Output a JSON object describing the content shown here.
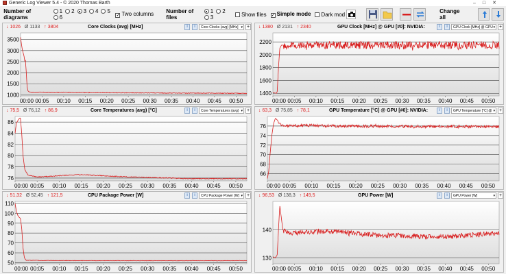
{
  "window": {
    "title": "Generic Log Viewer 5.4 - © 2020 Thomas Barth"
  },
  "toolbar": {
    "diagrams_label": "Number of diagrams",
    "diagram_options": [
      "1",
      "2",
      "3",
      "4",
      "5",
      "6"
    ],
    "diagram_selected": "3",
    "two_columns_label": "Two columns",
    "files_label": "Number of files",
    "file_options": [
      "1",
      "2",
      "3"
    ],
    "file_selected": "1",
    "show_files_label": "Show files",
    "simple_mode_label": "Simple mode",
    "dark_mode_label": "Dark mod",
    "change_all_label": "Change all"
  },
  "colors": {
    "series": "#d81e1e",
    "stats": "#d22222",
    "plot_bg_top": "#ffffff",
    "plot_bg_bottom": "#dcdcdc"
  },
  "panels": [
    {
      "id": "core-clocks",
      "stats": {
        "min": "↓ 1026",
        "avg": "Ø 1133",
        "max": "↑ 3804"
      },
      "title": "Core Clocks (avg) [MHz]",
      "selector": "Core Clocks (avg) [MHz]",
      "chart_data": {
        "type": "line",
        "title": "Core Clocks (avg) [MHz]",
        "x_ticks": [
          "00:00",
          "00:05",
          "00:10",
          "00:15",
          "00:20",
          "00:25",
          "00:30",
          "00:35",
          "00:40",
          "00:45",
          "00:50"
        ],
        "y_ticks": [
          1000,
          1500,
          2000,
          2500,
          3000,
          3500
        ],
        "ylim": [
          950,
          3800
        ],
        "xlim_minutes": [
          0,
          52.5
        ],
        "series": [
          {
            "points": [
              [
                0,
                3600
              ],
              [
                0.2,
                3300
              ],
              [
                0.4,
                3050
              ],
              [
                0.6,
                2900
              ],
              [
                0.8,
                2750
              ],
              [
                1.0,
                2500
              ],
              [
                1.1,
                2600
              ],
              [
                1.3,
                2100
              ],
              [
                1.5,
                1400
              ],
              [
                1.7,
                1180
              ],
              [
                2,
                1130
              ],
              [
                3,
                1110
              ],
              [
                5,
                1115
              ],
              [
                8,
                1105
              ],
              [
                10,
                1110
              ],
              [
                15,
                1100
              ],
              [
                20,
                1095
              ],
              [
                25,
                1090
              ],
              [
                30,
                1085
              ],
              [
                35,
                1080
              ],
              [
                40,
                1075
              ],
              [
                45,
                1075
              ],
              [
                50,
                1070
              ],
              [
                52.5,
                1065
              ]
            ],
            "noise": 15
          }
        ]
      }
    },
    {
      "id": "gpu-clock",
      "stats": {
        "min": "↓ 1380",
        "avg": "Ø 2131",
        "max": "↑ 2340"
      },
      "title": "GPU Clock [MHz] @ GPU [#0]: NVIDIA:",
      "selector": "GPU Clock [MHz] @ GPU",
      "chart_data": {
        "type": "line",
        "title": "GPU Clock [MHz] @ GPU [#0]: NVIDIA:",
        "x_ticks": [
          "00:00",
          "00:05",
          "00:10",
          "00:15",
          "00:20",
          "00:25",
          "00:30",
          "00:35",
          "00:40",
          "00:45",
          "00:50"
        ],
        "y_ticks": [
          1400,
          1600,
          1800,
          2000,
          2200
        ],
        "ylim": [
          1360,
          2340
        ],
        "xlim_minutes": [
          0,
          52.5
        ],
        "series": [
          {
            "points": [
              [
                0,
                1410
              ],
              [
                0.8,
                1400
              ],
              [
                1.0,
                1420
              ],
              [
                1.3,
                1800
              ],
              [
                1.6,
                2100
              ],
              [
                2,
                2150
              ],
              [
                5,
                2150
              ],
              [
                10,
                2150
              ],
              [
                20,
                2150
              ],
              [
                30,
                2150
              ],
              [
                40,
                2150
              ],
              [
                50,
                2150
              ],
              [
                52.5,
                2150
              ]
            ],
            "noise": 60
          }
        ]
      }
    },
    {
      "id": "core-temps",
      "stats": {
        "min": "↓ 75,5",
        "avg": "Ø 76,12",
        "max": "↑ 86,9"
      },
      "title": "Core Temperatures (avg) [°C]",
      "selector": "Core Temperatures (avg)",
      "chart_data": {
        "type": "line",
        "title": "Core Temperatures (avg) [°C]",
        "x_ticks": [
          "00:00",
          "00:05",
          "00:10",
          "00:15",
          "00:20",
          "00:25",
          "00:30",
          "00:35",
          "00:40",
          "00:45",
          "00:50"
        ],
        "y_ticks": [
          76,
          78,
          80,
          82,
          84,
          86
        ],
        "ylim": [
          75.5,
          87
        ],
        "xlim_minutes": [
          0,
          52.5
        ],
        "series": [
          {
            "points": [
              [
                0,
                84
              ],
              [
                0.3,
                85.8
              ],
              [
                0.8,
                86.5
              ],
              [
                1.2,
                86.8
              ],
              [
                1.5,
                84
              ],
              [
                1.8,
                80
              ],
              [
                2.2,
                77.5
              ],
              [
                3,
                76.5
              ],
              [
                5,
                76.2
              ],
              [
                8,
                76.3
              ],
              [
                12,
                76.5
              ],
              [
                15,
                76.6
              ],
              [
                20,
                76.4
              ],
              [
                25,
                76.2
              ],
              [
                30,
                76.1
              ],
              [
                35,
                76.0
              ],
              [
                40,
                75.9
              ],
              [
                45,
                75.9
              ],
              [
                50,
                75.9
              ],
              [
                52.5,
                75.9
              ]
            ],
            "noise": 0.08
          }
        ]
      }
    },
    {
      "id": "gpu-temp",
      "stats": {
        "min": "↓ 63,3",
        "avg": "Ø 75,85",
        "max": "↑ 78,1"
      },
      "title": "GPU Temperature [°C] @ GPU [#0]: NVIDIA:",
      "selector": "GPU Temperature [°C] @",
      "chart_data": {
        "type": "line",
        "title": "GPU Temperature [°C] @ GPU [#0]: NVIDIA:",
        "x_ticks": [
          "00:00",
          "00:05",
          "00:10",
          "00:15",
          "00:20",
          "00:25",
          "00:30",
          "00:35",
          "00:40",
          "00:45",
          "00:50"
        ],
        "y_ticks": [
          66,
          68,
          70,
          72,
          74,
          76
        ],
        "ylim": [
          64.5,
          78
        ],
        "xlim_minutes": [
          0,
          52.5
        ],
        "series": [
          {
            "points": [
              [
                0,
                65
              ],
              [
                0.3,
                66.5
              ],
              [
                0.6,
                70
              ],
              [
                1.0,
                74
              ],
              [
                1.4,
                76.5
              ],
              [
                1.8,
                77.6
              ],
              [
                2.2,
                77.3
              ],
              [
                3,
                76.2
              ],
              [
                5,
                76.0
              ],
              [
                10,
                76.1
              ],
              [
                15,
                76.0
              ],
              [
                20,
                76.0
              ],
              [
                30,
                75.9
              ],
              [
                40,
                75.9
              ],
              [
                50,
                75.8
              ],
              [
                52.5,
                75.9
              ]
            ],
            "noise": 0.3
          }
        ]
      }
    },
    {
      "id": "cpu-package-power",
      "stats": {
        "min": "↓ 51,32",
        "avg": "Ø 52,45",
        "max": "↑ 121,5"
      },
      "title": "CPU Package Power [W]",
      "selector": "CPU Package Power [W]",
      "chart_data": {
        "type": "line",
        "title": "CPU Package Power [W]",
        "x_ticks": [
          "00:00",
          "00:05",
          "00:10",
          "00:15",
          "00:20",
          "00:25",
          "00:30",
          "00:35",
          "00:40",
          "00:45",
          "00:50"
        ],
        "y_ticks": [
          50,
          60,
          70,
          80,
          90,
          100,
          110
        ],
        "ylim": [
          49,
          112
        ],
        "xlim_minutes": [
          0,
          52.5
        ],
        "series": [
          {
            "points": [
              [
                0,
                110
              ],
              [
                0.3,
                102
              ],
              [
                0.6,
                98
              ],
              [
                0.9,
                96
              ],
              [
                1.2,
                95
              ],
              [
                1.5,
                85
              ],
              [
                1.8,
                65
              ],
              [
                2.1,
                55
              ],
              [
                2.5,
                52.5
              ],
              [
                5,
                52.3
              ],
              [
                10,
                52.2
              ],
              [
                20,
                52.1
              ],
              [
                30,
                52.1
              ],
              [
                40,
                52.1
              ],
              [
                50,
                52.1
              ],
              [
                52.5,
                52.1
              ]
            ],
            "noise": 0.2
          }
        ]
      }
    },
    {
      "id": "gpu-power",
      "stats": {
        "min": "↓ 96,53",
        "avg": "Ø 138,3",
        "max": "↑ 149,5"
      },
      "title": "GPU Power [W]",
      "selector": "GPU Power [W]",
      "chart_data": {
        "type": "line",
        "title": "GPU Power [W]",
        "x_ticks": [
          "00:00",
          "00:05",
          "00:10",
          "00:15",
          "00:20",
          "00:25",
          "00:30",
          "00:35",
          "00:40",
          "00:45",
          "00:50"
        ],
        "y_ticks": [
          130,
          140
        ],
        "ylim": [
          128,
          150
        ],
        "xlim_minutes": [
          0,
          52.5
        ],
        "series": [
          {
            "points": [
              [
                0,
                130.5
              ],
              [
                0.5,
                130
              ],
              [
                1.0,
                131
              ],
              [
                1.3,
                140
              ],
              [
                1.6,
                148.5
              ],
              [
                1.9,
                145
              ],
              [
                2.3,
                140
              ],
              [
                3,
                139
              ],
              [
                6,
                139
              ],
              [
                10,
                139.5
              ],
              [
                15,
                139.5
              ],
              [
                20,
                138.5
              ],
              [
                25,
                138
              ],
              [
                30,
                138
              ],
              [
                35,
                137.5
              ],
              [
                40,
                137.5
              ],
              [
                45,
                138
              ],
              [
                50,
                138.5
              ],
              [
                52.5,
                139
              ]
            ],
            "noise": 0.9
          }
        ]
      }
    }
  ]
}
